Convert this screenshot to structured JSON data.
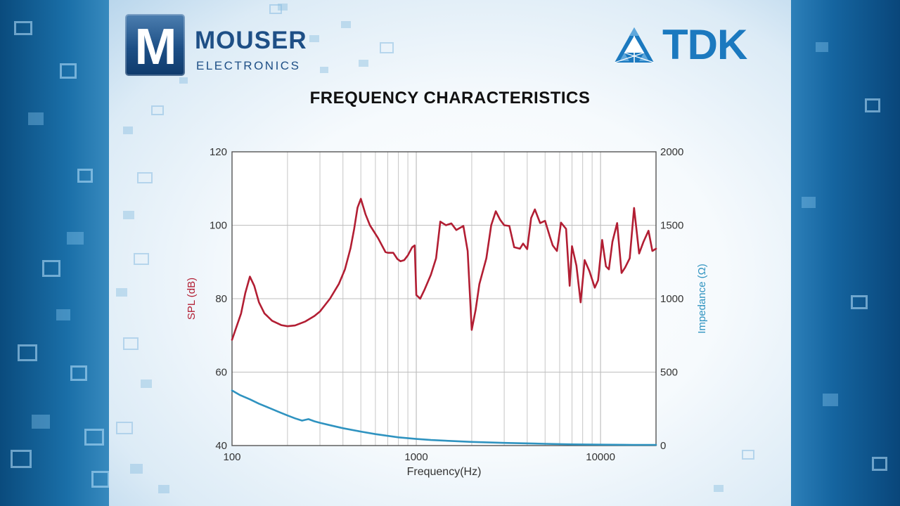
{
  "branding": {
    "left_logo_letter": "M",
    "left_logo_line1": "MOUSER",
    "left_logo_line2": "ELECTRONICS",
    "right_logo_text": "TDK"
  },
  "colors": {
    "spl": "#b21e33",
    "impedance": "#2f93c0",
    "grid": "#bfbfbf",
    "axis": "#555555"
  },
  "chart_data": {
    "type": "line",
    "title": "FREQUENCY CHARACTERISTICS",
    "xlabel": "Frequency(Hz)",
    "ylabel_left": "SPL (dB)",
    "ylabel_right": "Impedance (Ω)",
    "x_scale": "log",
    "xlim": [
      100,
      20000
    ],
    "ylim_left": [
      40,
      120
    ],
    "ylim_right": [
      0,
      2000
    ],
    "x_ticks": [
      100,
      1000,
      10000
    ],
    "x_tick_labels": [
      "100",
      "1000",
      "10000"
    ],
    "y_left_ticks": [
      40,
      60,
      80,
      100,
      120
    ],
    "y_left_tick_labels": [
      "40",
      "60",
      "80",
      "100",
      "120"
    ],
    "y_right_ticks": [
      0,
      500,
      1000,
      1500,
      2000
    ],
    "y_right_tick_labels": [
      "0",
      "500",
      "1000",
      "1500",
      "2000"
    ],
    "grid": true,
    "series": [
      {
        "axis": "left",
        "color": "#b21e33",
        "points": [
          [
            100,
            68.8
          ],
          [
            112,
            76
          ],
          [
            118,
            81.5
          ],
          [
            125,
            86
          ],
          [
            132,
            83.5
          ],
          [
            140,
            79
          ],
          [
            150,
            76
          ],
          [
            165,
            74
          ],
          [
            185,
            72.8
          ],
          [
            200,
            72.5
          ],
          [
            220,
            72.7
          ],
          [
            250,
            73.8
          ],
          [
            280,
            75.3
          ],
          [
            300,
            76.5
          ],
          [
            340,
            80
          ],
          [
            380,
            84
          ],
          [
            410,
            88
          ],
          [
            440,
            93.8
          ],
          [
            460,
            99
          ],
          [
            480,
            104.8
          ],
          [
            500,
            107.2
          ],
          [
            530,
            103
          ],
          [
            560,
            100
          ],
          [
            620,
            96.5
          ],
          [
            680,
            92.7
          ],
          [
            700,
            92.5
          ],
          [
            750,
            92.5
          ],
          [
            790,
            90.8
          ],
          [
            820,
            90.2
          ],
          [
            860,
            90.5
          ],
          [
            900,
            91.8
          ],
          [
            950,
            94
          ],
          [
            980,
            94.5
          ],
          [
            1000,
            81
          ],
          [
            1050,
            80
          ],
          [
            1110,
            82.5
          ],
          [
            1200,
            86.5
          ],
          [
            1280,
            91
          ],
          [
            1350,
            101
          ],
          [
            1450,
            100
          ],
          [
            1550,
            100.5
          ],
          [
            1650,
            98.7
          ],
          [
            1800,
            99.8
          ],
          [
            1900,
            93
          ],
          [
            2000,
            71.5
          ],
          [
            2100,
            77
          ],
          [
            2200,
            84
          ],
          [
            2400,
            91
          ],
          [
            2550,
            100
          ],
          [
            2700,
            103.8
          ],
          [
            2850,
            101.5
          ],
          [
            3000,
            100
          ],
          [
            3200,
            99.8
          ],
          [
            3400,
            94
          ],
          [
            3650,
            93.6
          ],
          [
            3800,
            95
          ],
          [
            4000,
            93.5
          ],
          [
            4200,
            102
          ],
          [
            4400,
            104.3
          ],
          [
            4700,
            100.6
          ],
          [
            5000,
            101.2
          ],
          [
            5300,
            97
          ],
          [
            5500,
            94.5
          ],
          [
            5800,
            93
          ],
          [
            6100,
            100.7
          ],
          [
            6500,
            99
          ],
          [
            6800,
            83.5
          ],
          [
            7000,
            94.3
          ],
          [
            7400,
            89
          ],
          [
            7800,
            79
          ],
          [
            8200,
            90.5
          ],
          [
            8700,
            87.5
          ],
          [
            9300,
            83
          ],
          [
            9700,
            85
          ],
          [
            10200,
            96
          ],
          [
            10700,
            88.8
          ],
          [
            11100,
            88
          ],
          [
            11600,
            95.5
          ],
          [
            12300,
            100.6
          ],
          [
            13000,
            87
          ],
          [
            13600,
            88.5
          ],
          [
            14400,
            91
          ],
          [
            15200,
            104.7
          ],
          [
            16200,
            92.3
          ],
          [
            17100,
            95.5
          ],
          [
            18200,
            98.5
          ],
          [
            19100,
            93
          ],
          [
            20000,
            93.6
          ]
        ]
      },
      {
        "axis": "right",
        "color": "#2f93c0",
        "points": [
          [
            100,
            375
          ],
          [
            110,
            345
          ],
          [
            125,
            315
          ],
          [
            140,
            285
          ],
          [
            160,
            255
          ],
          [
            180,
            228
          ],
          [
            200,
            205
          ],
          [
            220,
            185
          ],
          [
            240,
            170
          ],
          [
            250,
            175
          ],
          [
            260,
            180
          ],
          [
            280,
            165
          ],
          [
            300,
            155
          ],
          [
            350,
            135
          ],
          [
            400,
            118
          ],
          [
            500,
            95
          ],
          [
            600,
            78
          ],
          [
            700,
            66
          ],
          [
            800,
            56
          ],
          [
            1000,
            45
          ],
          [
            1200,
            38
          ],
          [
            1500,
            32
          ],
          [
            2000,
            25
          ],
          [
            3000,
            18
          ],
          [
            5000,
            12
          ],
          [
            7000,
            8
          ],
          [
            10000,
            6
          ],
          [
            15000,
            5
          ],
          [
            20000,
            5
          ]
        ]
      }
    ]
  }
}
